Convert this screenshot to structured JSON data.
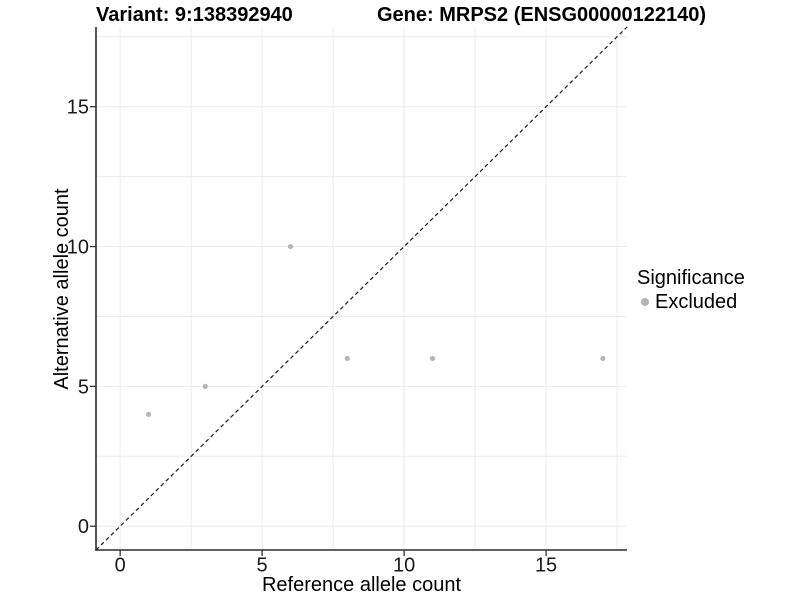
{
  "chart_data": {
    "type": "scatter",
    "title_left": "Variant: 9:138392940",
    "title_right": "Gene: MRPS2 (ENSG00000122140)",
    "xlabel": "Reference allele count",
    "ylabel": "Alternative allele count",
    "series": [
      {
        "name": "Excluded",
        "color": "#b5b5b5",
        "points": [
          [
            1,
            4
          ],
          [
            3,
            5
          ],
          [
            6,
            10
          ],
          [
            8,
            6
          ],
          [
            11,
            6
          ],
          [
            17,
            6
          ]
        ]
      }
    ],
    "reference_line": {
      "type": "identity",
      "slope": 1,
      "intercept": 0,
      "style": "dashed",
      "color": "#1a1a1a"
    },
    "xlim": [
      -0.85,
      17.85
    ],
    "ylim": [
      -0.85,
      17.85
    ],
    "x_ticks": [
      0,
      5,
      10,
      15
    ],
    "y_ticks": [
      0,
      5,
      10,
      15
    ],
    "x_grid": [
      0,
      2.5,
      5,
      7.5,
      10,
      12.5,
      15,
      17.5
    ],
    "y_grid": [
      0,
      2.5,
      5,
      7.5,
      10,
      12.5,
      15,
      17.5
    ],
    "grid_on": true,
    "legend": {
      "title": "Significance",
      "position": "right",
      "items": [
        {
          "label": "Excluded",
          "color": "#b5b5b5"
        }
      ]
    },
    "colors": {
      "point": "#b5b5b5",
      "grid": "#ebebeb",
      "axis": "#2b2b2b",
      "tick": "#333333",
      "text": "#1a1a1a"
    }
  }
}
